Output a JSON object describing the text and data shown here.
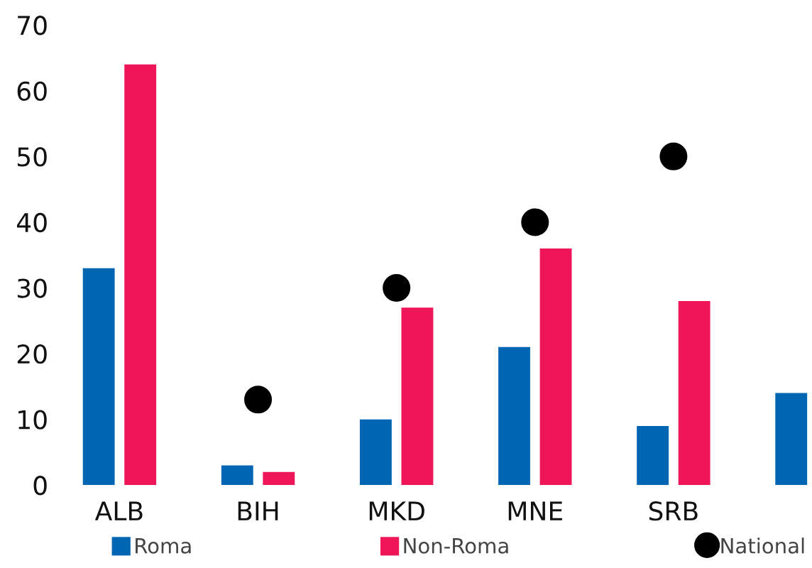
{
  "chart_data": {
    "type": "bar",
    "categories": [
      "ALB",
      "BIH",
      "MKD",
      "MNE",
      "SRB",
      null
    ],
    "series": [
      {
        "name": "Roma",
        "color": "#0066b3",
        "values": [
          33,
          3,
          10,
          21,
          9,
          14
        ]
      },
      {
        "name": "Non-Roma",
        "color": "#ee1559",
        "values": [
          64,
          2,
          27,
          36,
          28,
          null
        ]
      },
      {
        "name": "National",
        "type": "scatter",
        "color": "#000000",
        "marker": "circle",
        "values": [
          null,
          13,
          30,
          40,
          50,
          null
        ]
      }
    ],
    "ylim": [
      0,
      70
    ],
    "yticks": [
      0,
      10,
      20,
      30,
      40,
      50,
      60,
      70
    ],
    "grid": false,
    "legend": "bottom"
  }
}
